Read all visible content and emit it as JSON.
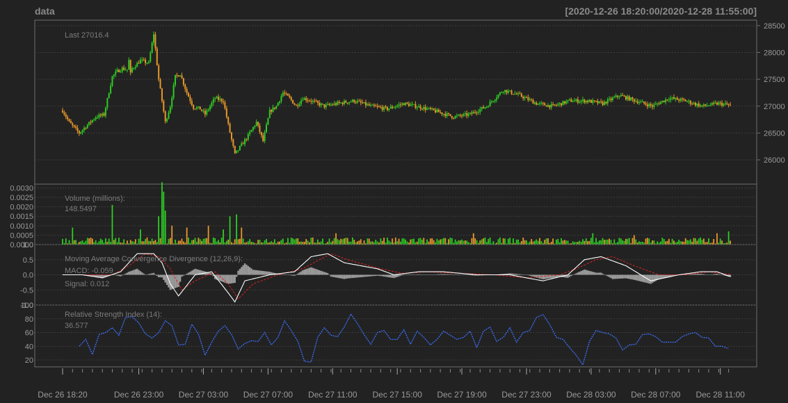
{
  "header": {
    "title": "data",
    "date_range": "[2020-12-26 18:20:00/2020-12-28 11:55:00]"
  },
  "colors": {
    "background": "#222222",
    "panel_border": "#6e6e6e",
    "grid": "#3c3c3c",
    "up": "#2ecc24",
    "down": "#e8982a",
    "macd_line": "#ffffff",
    "signal_line": "#e02020",
    "histogram": "#9a9a9a",
    "rsi_line": "#3a6cf0",
    "label_orange": "#e89a2c",
    "label_blue": "#2a56d8"
  },
  "chart_data": [
    {
      "panel": "price",
      "type": "candlestick",
      "label": "Last 27016.4",
      "yticks": [
        "26000",
        "26500",
        "27000",
        "27500",
        "28000",
        "28500"
      ],
      "ylim": [
        25600,
        28550
      ],
      "last": 27016.4,
      "path_x": [
        0,
        4,
        10,
        20,
        25,
        30,
        33,
        36,
        39,
        40,
        41,
        42,
        47,
        52,
        55,
        58,
        62,
        65,
        68,
        71,
        75,
        79,
        83,
        86,
        89,
        92,
        97,
        100,
        104,
        112,
        117,
        121,
        125,
        129,
        133,
        137,
        141,
        145,
        150,
        158,
        166,
        176,
        186,
        196,
        206,
        216,
        226,
        236,
        246,
        256,
        266,
        276,
        286,
        296,
        306,
        316,
        326,
        336,
        346,
        356,
        366,
        376,
        386,
        396,
        403
      ],
      "path_y": [
        26920,
        26700,
        26500,
        26800,
        26840,
        27550,
        27650,
        27700,
        27680,
        27850,
        27600,
        27700,
        27850,
        27800,
        28350,
        27500,
        26700,
        27000,
        27550,
        27600,
        27250,
        26980,
        26950,
        26850,
        27000,
        27150,
        27100,
        26650,
        26100,
        26450,
        26700,
        26350,
        26900,
        27000,
        27250,
        27150,
        27000,
        27150,
        27100,
        27000,
        27050,
        27100,
        27000,
        26950,
        27050,
        26980,
        26900,
        26800,
        26850,
        27000,
        27300,
        27200,
        27050,
        27000,
        27100,
        27100,
        27050,
        27200,
        27100,
        27000,
        27150,
        27100,
        27000,
        27050,
        27016.4
      ]
    },
    {
      "panel": "volume",
      "type": "bar",
      "title": "Volume (millions):",
      "last": "148.5497",
      "yticks": [
        "0.0000",
        "0.0005",
        "0.0010",
        "0.0015",
        "0.0020",
        "0.0025",
        "0.0030"
      ],
      "ylim": [
        0,
        0.0032
      ],
      "spikes": [
        [
          6,
          0.0009
        ],
        [
          30,
          0.0021
        ],
        [
          47,
          0.0008
        ],
        [
          58,
          0.0015
        ],
        [
          60,
          0.0033
        ],
        [
          61,
          0.0028
        ],
        [
          62,
          0.0018
        ],
        [
          66,
          0.001
        ],
        [
          75,
          0.0009
        ],
        [
          88,
          0.001
        ],
        [
          97,
          0.0008
        ],
        [
          101,
          0.0015
        ],
        [
          105,
          0.0016
        ],
        [
          108,
          0.0009
        ],
        [
          165,
          0.0006
        ],
        [
          248,
          0.0006
        ],
        [
          320,
          0.0006
        ],
        [
          345,
          0.0005
        ],
        [
          395,
          0.0006
        ],
        [
          402,
          0.0007
        ]
      ]
    },
    {
      "panel": "macd",
      "type": "line",
      "title": "Moving Average Convergence Divergence (12,26,9):",
      "macd_label": "MACD: -0.059",
      "signal_label": "Signal: 0.012",
      "yticks": [
        "-1.0",
        "-0.5",
        "0.0",
        "0.5",
        "1.0"
      ],
      "ylim": [
        -1.0,
        1.0
      ],
      "macd_x": [
        0,
        12,
        24,
        35,
        45,
        55,
        60,
        65,
        70,
        80,
        90,
        100,
        104,
        110,
        125,
        140,
        150,
        160,
        170,
        190,
        200,
        215,
        230,
        250,
        270,
        290,
        305,
        315,
        325,
        340,
        355,
        372,
        385,
        395,
        403
      ],
      "macd_y": [
        0,
        0,
        -0.1,
        0.1,
        0.7,
        0.7,
        0.4,
        -0.3,
        -0.7,
        0.0,
        0.1,
        -0.6,
        -0.9,
        -0.2,
        0.0,
        0.1,
        0.6,
        0.7,
        0.4,
        0.2,
        0.0,
        0.1,
        0.1,
        0.0,
        0.0,
        -0.2,
        0.0,
        0.5,
        0.6,
        0.3,
        -0.2,
        0.0,
        0.1,
        0.1,
        -0.059
      ],
      "signal_x": [
        0,
        15,
        30,
        40,
        50,
        58,
        65,
        72,
        80,
        92,
        100,
        106,
        115,
        130,
        145,
        155,
        162,
        172,
        192,
        205,
        220,
        240,
        260,
        280,
        300,
        310,
        322,
        332,
        345,
        360,
        375,
        390,
        403
      ],
      "signal_y": [
        0,
        0,
        0.0,
        0.3,
        0.7,
        0.6,
        0.2,
        -0.5,
        -0.2,
        0.1,
        -0.3,
        -0.8,
        -0.3,
        0.0,
        0.2,
        0.5,
        0.7,
        0.5,
        0.2,
        0.05,
        0.1,
        0.05,
        0.0,
        -0.1,
        0.0,
        0.2,
        0.5,
        0.6,
        0.3,
        0.0,
        0.0,
        0.1,
        0.012
      ]
    },
    {
      "panel": "rsi",
      "type": "line",
      "title": "Relative Strength Index (14):",
      "last": "36.577",
      "yticks": [
        "20",
        "40",
        "60",
        "80",
        "100"
      ],
      "ylim": [
        10,
        100
      ],
      "x": [
        10,
        14,
        18,
        22,
        26,
        30,
        34,
        38,
        42,
        46,
        50,
        54,
        58,
        62,
        66,
        70,
        74,
        78,
        82,
        86,
        90,
        94,
        98,
        102,
        106,
        110,
        114,
        118,
        122,
        126,
        130,
        134,
        138,
        142,
        146,
        150,
        154,
        158,
        162,
        166,
        170,
        174,
        178,
        182,
        186,
        190,
        194,
        198,
        202,
        206,
        210,
        214,
        218,
        222,
        226,
        230,
        234,
        238,
        242,
        246,
        250,
        254,
        258,
        262,
        266,
        270,
        274,
        278,
        282,
        286,
        290,
        294,
        298,
        302,
        306,
        310,
        314,
        318,
        322,
        326,
        330,
        334,
        338,
        342,
        346,
        350,
        354,
        358,
        362,
        366,
        370,
        374,
        378,
        382,
        386,
        390,
        394,
        398,
        402
      ],
      "y": [
        42,
        48,
        30,
        55,
        62,
        65,
        58,
        80,
        85,
        72,
        60,
        50,
        62,
        75,
        72,
        40,
        45,
        70,
        60,
        25,
        48,
        60,
        72,
        55,
        38,
        42,
        50,
        45,
        62,
        40,
        55,
        75,
        65,
        45,
        20,
        15,
        55,
        65,
        58,
        52,
        70,
        85,
        75,
        55,
        45,
        58,
        65,
        48,
        52,
        62,
        45,
        60,
        55,
        40,
        52,
        60,
        58,
        48,
        55,
        60,
        40,
        60,
        70,
        45,
        55,
        65,
        48,
        58,
        65,
        80,
        88,
        70,
        55,
        48,
        40,
        25,
        15,
        45,
        65,
        58,
        60,
        50,
        36.577,
        40,
        45,
        55,
        60,
        52,
        48,
        44,
        48,
        52,
        60,
        58,
        55,
        50,
        42,
        38,
        36.577
      ]
    }
  ],
  "x_axis": {
    "labels": [
      "Dec 26 18:20",
      "Dec 26 23:00",
      "Dec 27 03:00",
      "Dec 27 07:00",
      "Dec 27 11:00",
      "Dec 27 15:00",
      "Dec 27 19:00",
      "Dec 27 23:00",
      "Dec 28 03:00",
      "Dec 28 07:00",
      "Dec 28 11:00"
    ],
    "positions": [
      0,
      46,
      85,
      124,
      163,
      202,
      241,
      280,
      319,
      358,
      397
    ],
    "count": 404
  }
}
